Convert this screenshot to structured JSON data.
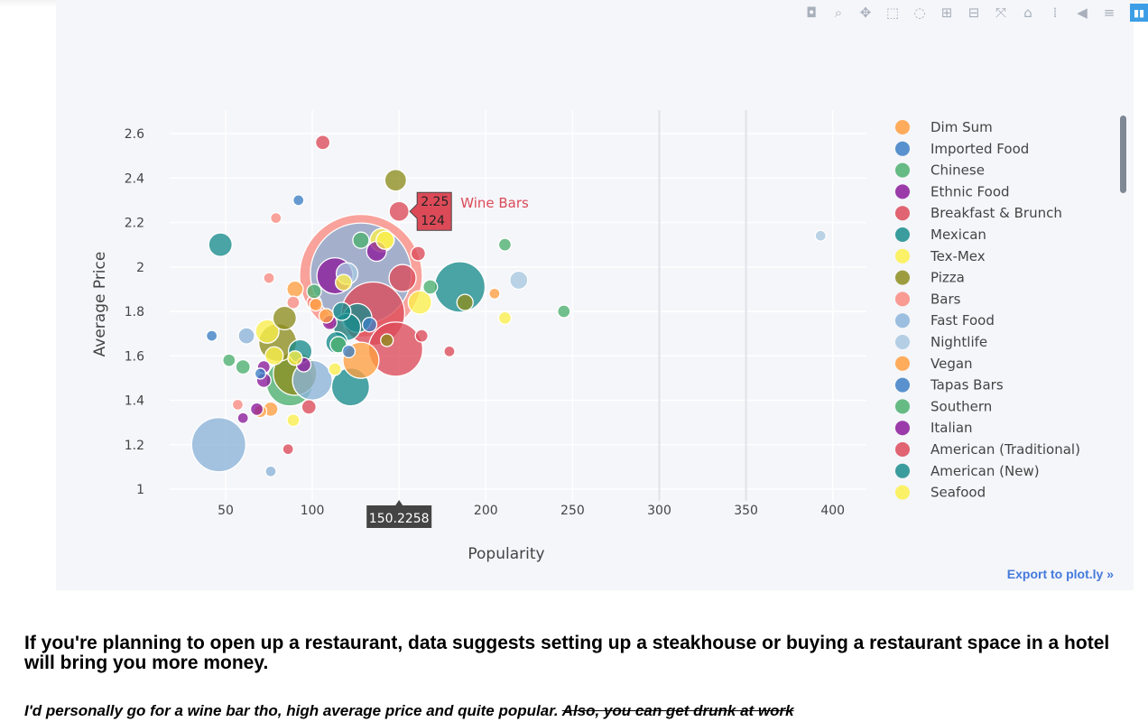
{
  "modebar": {
    "icons": [
      "camera-icon",
      "zoom-icon",
      "pan-icon",
      "box-select-icon",
      "lasso-icon",
      "zoom-in-icon",
      "zoom-out-icon",
      "autoscale-icon",
      "reset-axes-icon",
      "spike-lines-icon",
      "hover-closest-icon",
      "hover-compare-icon",
      "plotly-logo-icon"
    ]
  },
  "export_link": "Export to plot.ly »",
  "chart_data": {
    "type": "scatter",
    "title": "",
    "xlabel": "Popularity",
    "ylabel": "Average Price",
    "xlim": [
      0,
      420
    ],
    "ylim": [
      0.95,
      2.7
    ],
    "xticks": [
      50,
      100,
      150,
      200,
      250,
      300,
      350,
      400
    ],
    "xtick_labels": [
      "50",
      "100",
      "",
      "200",
      "250",
      "300",
      "350",
      "400"
    ],
    "yticks": [
      1,
      1.2,
      1.4,
      1.6,
      1.8,
      2,
      2.2,
      2.4,
      2.6
    ],
    "ytick_labels": [
      "1",
      "1.2",
      "1.4",
      "1.6",
      "1.8",
      "2",
      "2.2",
      "2.4",
      "2.6"
    ],
    "grid": true,
    "legend_position": "right",
    "series": [
      {
        "name": "Dim Sum",
        "color": "#ff9f40",
        "points": [
          [
            205,
            1.88,
            6
          ],
          [
            76,
            1.36,
            8
          ],
          [
            128,
            1.58,
            20
          ],
          [
            90,
            1.9,
            9
          ],
          [
            102,
            1.83,
            7
          ]
        ]
      },
      {
        "name": "Imported Food",
        "color": "#3c7fc4",
        "points": [
          [
            42,
            1.69,
            6
          ],
          [
            92,
            2.3,
            6
          ],
          [
            70,
            1.52,
            6
          ]
        ]
      },
      {
        "name": "Chinese",
        "color": "#4caf6e",
        "points": [
          [
            245,
            1.8,
            7
          ],
          [
            211,
            2.1,
            7
          ],
          [
            52,
            1.58,
            7
          ],
          [
            87,
            1.48,
            26
          ],
          [
            128,
            2.12,
            9
          ]
        ]
      },
      {
        "name": "Ethnic Food",
        "color": "#8b1a9a",
        "points": [
          [
            113,
            1.96,
            20
          ],
          [
            137,
            2.07,
            11
          ],
          [
            72,
            1.49,
            8
          ],
          [
            110,
            1.75,
            8
          ]
        ]
      },
      {
        "name": "Breakfast & Brunch",
        "color": "#dc4a58",
        "points": [
          [
            148,
            1.63,
            30
          ],
          [
            135,
            1.79,
            35
          ],
          [
            152,
            1.95,
            15
          ],
          [
            161,
            2.06,
            8
          ]
        ]
      },
      {
        "name": "Mexican",
        "color": "#1a8c8c",
        "points": [
          [
            185,
            1.91,
            28
          ],
          [
            122,
            1.46,
            21
          ],
          [
            114,
            1.66,
            12
          ],
          [
            93,
            1.62,
            13
          ],
          [
            126,
            1.77,
            16
          ]
        ]
      },
      {
        "name": "Tex-Mex",
        "color": "#fbf04b",
        "points": [
          [
            162,
            1.84,
            13
          ],
          [
            211,
            1.77,
            7
          ],
          [
            118,
            1.93,
            9
          ],
          [
            89,
            1.31,
            7
          ],
          [
            74,
            1.71,
            13
          ],
          [
            140,
            2.12,
            13
          ]
        ]
      },
      {
        "name": "Pizza",
        "color": "#8d8d1f",
        "points": [
          [
            148,
            2.39,
            12
          ],
          [
            84,
            1.77,
            13
          ],
          [
            90,
            1.52,
            24
          ],
          [
            80,
            1.66,
            21
          ],
          [
            188,
            1.84,
            9
          ],
          [
            143,
            1.67,
            7
          ]
        ]
      },
      {
        "name": "Bars",
        "color": "#f98a80",
        "points": [
          [
            128,
            1.96,
            68
          ],
          [
            79,
            2.22,
            6
          ],
          [
            75,
            1.95,
            6
          ],
          [
            57,
            1.38,
            6
          ],
          [
            89,
            1.84,
            7
          ],
          [
            101,
            1.84,
            8
          ]
        ]
      },
      {
        "name": "Fast Food",
        "color": "#8cb4d9",
        "points": [
          [
            46,
            1.2,
            30
          ],
          [
            76,
            1.08,
            6
          ],
          [
            62,
            1.69,
            9
          ],
          [
            128,
            1.97,
            56
          ],
          [
            100,
            1.49,
            22
          ]
        ]
      },
      {
        "name": "Nightlife",
        "color": "#a8c8e0",
        "points": [
          [
            393,
            2.14,
            6
          ],
          [
            219,
            1.94,
            10
          ],
          [
            120,
            1.97,
            12
          ]
        ]
      },
      {
        "name": "Vegan",
        "color": "#ff9f40",
        "points": [
          [
            70,
            1.35,
            7
          ],
          [
            108,
            1.78,
            8
          ]
        ]
      },
      {
        "name": "Tapas Bars",
        "color": "#3c7fc4",
        "points": [
          [
            133,
            1.74,
            8
          ],
          [
            121,
            1.62,
            7
          ]
        ]
      },
      {
        "name": "Southern",
        "color": "#4caf6e",
        "points": [
          [
            60,
            1.55,
            8
          ],
          [
            101,
            1.89,
            8
          ],
          [
            115,
            1.65,
            9
          ],
          [
            168,
            1.91,
            8
          ]
        ]
      },
      {
        "name": "Italian",
        "color": "#8b1a9a",
        "points": [
          [
            68,
            1.36,
            7
          ],
          [
            60,
            1.32,
            6
          ],
          [
            95,
            1.56,
            8
          ],
          [
            72,
            1.55,
            7
          ]
        ]
      },
      {
        "name": "American (Traditional)",
        "color": "#dc4a58",
        "points": [
          [
            150,
            2.25,
            11
          ],
          [
            106,
            2.56,
            8
          ],
          [
            179,
            1.62,
            6
          ],
          [
            163,
            1.69,
            7
          ],
          [
            86,
            1.18,
            6
          ],
          [
            98,
            1.37,
            8
          ]
        ]
      },
      {
        "name": "American (New)",
        "color": "#1a8c8c",
        "points": [
          [
            47,
            2.1,
            13
          ],
          [
            120,
            1.73,
            15
          ],
          [
            117,
            1.8,
            10
          ]
        ]
      },
      {
        "name": "Seafood",
        "color": "#fbf04b",
        "points": [
          [
            78,
            1.6,
            10
          ],
          [
            142,
            2.12,
            10
          ],
          [
            90,
            1.59,
            8
          ],
          [
            113,
            1.54,
            7
          ]
        ]
      }
    ],
    "hover": {
      "series": "Wine Bars",
      "y_value": "2.25",
      "size_value": "124",
      "x_value": "150.2258",
      "color": "#dc4a58"
    }
  },
  "headline": "If you're planning to open up a restaurant, data suggests setting up a steakhouse or buying a restaurant space in a hotel will bring you more money.",
  "note": {
    "main": "I'd personally go for a wine bar tho, high average price and quite popular.",
    "struck": "Also, you can get drunk at work"
  }
}
